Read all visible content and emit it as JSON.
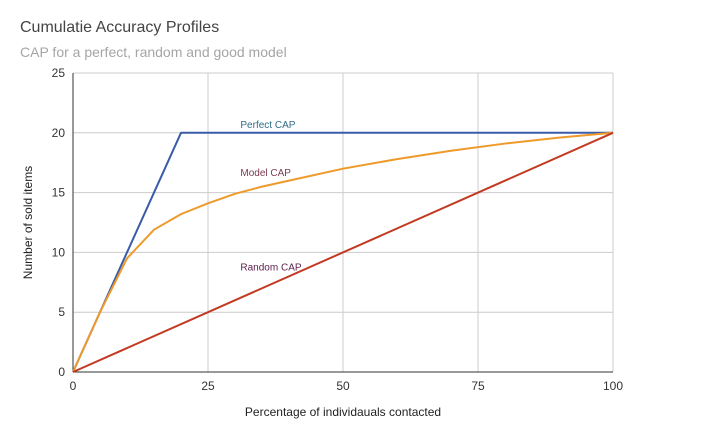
{
  "chart_data": {
    "type": "line",
    "title": "Cumulatie Accuracy Profiles",
    "subtitle": "CAP for a perfect, random and good model",
    "xlabel": "Percentage of individauals contacted",
    "ylabel": "Number of sold items",
    "xlim": [
      0,
      100
    ],
    "ylim": [
      0,
      25
    ],
    "xticks": [
      "0",
      "25",
      "50",
      "75",
      "100"
    ],
    "yticks": [
      "0",
      "5",
      "10",
      "15",
      "20",
      "25"
    ],
    "grid": true,
    "legend": "none",
    "series": [
      {
        "name": "Perfect CAP",
        "color": "#3a5ba8",
        "x": [
          0,
          20,
          100
        ],
        "y": [
          0,
          20,
          20
        ]
      },
      {
        "name": "Model CAP",
        "color": "#ee9a2b",
        "x": [
          0,
          5,
          10,
          15,
          20,
          25,
          30,
          35,
          40,
          50,
          60,
          70,
          80,
          90,
          100
        ],
        "y": [
          0,
          5,
          9.5,
          11.9,
          13.2,
          14.1,
          14.9,
          15.5,
          16.0,
          17.0,
          17.8,
          18.5,
          19.1,
          19.6,
          20
        ]
      },
      {
        "name": "Random CAP",
        "color": "#c23a22",
        "x": [
          0,
          100
        ],
        "y": [
          0,
          20
        ]
      }
    ],
    "annotations": [
      {
        "text": "Perfect CAP",
        "x": 31,
        "y": 20.4,
        "color": "#2d6e86"
      },
      {
        "text": "Model CAP",
        "x": 31,
        "y": 16.4,
        "color": "#7a3b52"
      },
      {
        "text": "Random CAP",
        "x": 31,
        "y": 8.5,
        "color": "#5c1e4a"
      }
    ]
  }
}
